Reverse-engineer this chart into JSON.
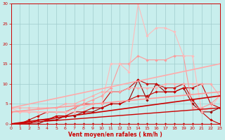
{
  "xlabel": "Vent moyen/en rafales ( km/h )",
  "xlim": [
    0,
    23
  ],
  "ylim": [
    0,
    30
  ],
  "xticks": [
    0,
    1,
    2,
    3,
    4,
    5,
    6,
    7,
    8,
    9,
    10,
    11,
    12,
    13,
    14,
    15,
    16,
    17,
    18,
    19,
    20,
    21,
    22,
    23
  ],
  "yticks": [
    0,
    5,
    10,
    15,
    20,
    25,
    30
  ],
  "background_color": "#c8eeed",
  "grid_color": "#a0cccc",
  "lines": [
    {
      "x": [
        0,
        1,
        2,
        3,
        4,
        5,
        6,
        7,
        8,
        9,
        10,
        11,
        12,
        13,
        14,
        15,
        16,
        17,
        18,
        19,
        20,
        21,
        22,
        23
      ],
      "y": [
        0,
        0,
        0,
        0,
        0,
        0,
        0,
        0,
        0,
        0,
        0,
        0,
        0,
        0,
        0,
        0,
        0,
        0,
        0,
        0,
        0,
        0,
        0,
        0
      ],
      "color": "#cc0000",
      "linewidth": 0.8,
      "marker": "D",
      "markersize": 1.8,
      "alpha": 1.0
    },
    {
      "x": [
        0,
        1,
        2,
        3,
        4,
        5,
        6,
        7,
        8,
        9,
        10,
        11,
        12,
        13,
        14,
        15,
        16,
        17,
        18,
        19,
        20,
        21,
        22,
        23
      ],
      "y": [
        0,
        0,
        0,
        0,
        1,
        1,
        2,
        2,
        3,
        3,
        4,
        5,
        5,
        6,
        11,
        6,
        10,
        8,
        8,
        9,
        5,
        3,
        3,
        4
      ],
      "color": "#990000",
      "linewidth": 0.8,
      "marker": "D",
      "markersize": 1.8,
      "alpha": 1.0
    },
    {
      "x": [
        0,
        1,
        2,
        3,
        4,
        5,
        6,
        7,
        8,
        9,
        10,
        11,
        12,
        13,
        14,
        15,
        16,
        17,
        18,
        19,
        20,
        21,
        22,
        23
      ],
      "y": [
        0,
        0,
        0,
        1,
        1,
        2,
        2,
        3,
        3,
        4,
        4,
        5,
        5,
        6,
        7,
        7,
        8,
        8,
        8,
        9,
        9,
        10,
        5,
        4
      ],
      "color": "#cc0000",
      "linewidth": 0.8,
      "marker": "D",
      "markersize": 1.8,
      "alpha": 1.0
    },
    {
      "x": [
        0,
        1,
        2,
        3,
        4,
        5,
        6,
        7,
        8,
        9,
        10,
        11,
        12,
        13,
        14,
        15,
        16,
        17,
        18,
        19,
        20,
        21,
        22,
        23
      ],
      "y": [
        0,
        0,
        1,
        2,
        3,
        3,
        3,
        4,
        5,
        5,
        5,
        8,
        8,
        9,
        11,
        10,
        10,
        9,
        9,
        10,
        6,
        3,
        1,
        0
      ],
      "color": "#cc0000",
      "linewidth": 0.8,
      "marker": "D",
      "markersize": 1.8,
      "alpha": 1.0
    },
    {
      "x": [
        0,
        1,
        2,
        3,
        4,
        5,
        6,
        7,
        8,
        9,
        10,
        11,
        12,
        13,
        14,
        15,
        16,
        17,
        18,
        19,
        20,
        21,
        22,
        23
      ],
      "y": [
        4,
        4,
        4,
        4,
        4,
        4,
        5,
        5,
        6,
        7,
        8,
        8,
        8,
        9,
        9,
        9,
        9,
        10,
        10,
        10,
        10,
        10,
        10,
        7
      ],
      "color": "#ffaaaa",
      "linewidth": 0.8,
      "marker": "D",
      "markersize": 1.8,
      "alpha": 1.0
    },
    {
      "x": [
        0,
        1,
        2,
        3,
        4,
        5,
        6,
        7,
        8,
        9,
        10,
        11,
        12,
        13,
        14,
        15,
        16,
        17,
        18,
        19,
        20,
        21,
        22,
        23
      ],
      "y": [
        3,
        3,
        3,
        3,
        3,
        3,
        3,
        4,
        5,
        6,
        7,
        9,
        15,
        15,
        17,
        16,
        16,
        16,
        17,
        17,
        4,
        4,
        5,
        7
      ],
      "color": "#ff9999",
      "linewidth": 0.8,
      "marker": "D",
      "markersize": 1.8,
      "alpha": 1.0
    },
    {
      "x": [
        0,
        1,
        2,
        3,
        4,
        5,
        6,
        7,
        8,
        9,
        10,
        11,
        12,
        13,
        14,
        15,
        16,
        17,
        18,
        19,
        20,
        21,
        22,
        23
      ],
      "y": [
        4,
        3,
        3,
        3,
        3,
        3,
        3,
        3,
        4,
        5,
        5,
        15,
        15,
        13,
        30,
        22,
        24,
        24,
        23,
        17,
        17,
        3,
        4,
        7
      ],
      "color": "#ffbbbb",
      "linewidth": 0.8,
      "marker": "D",
      "markersize": 1.8,
      "alpha": 1.0
    },
    {
      "x": [
        0,
        23
      ],
      "y": [
        4,
        15
      ],
      "color": "#ffaaaa",
      "linewidth": 1.2,
      "marker": null,
      "markersize": 0,
      "alpha": 1.0
    },
    {
      "x": [
        0,
        23
      ],
      "y": [
        3,
        8
      ],
      "color": "#ff9999",
      "linewidth": 1.2,
      "marker": null,
      "markersize": 0,
      "alpha": 1.0
    },
    {
      "x": [
        0,
        23
      ],
      "y": [
        0,
        7
      ],
      "color": "#cc0000",
      "linewidth": 1.2,
      "marker": null,
      "markersize": 0,
      "alpha": 1.0
    },
    {
      "x": [
        0,
        23
      ],
      "y": [
        0,
        4
      ],
      "color": "#cc0000",
      "linewidth": 1.0,
      "marker": null,
      "markersize": 0,
      "alpha": 1.0
    }
  ]
}
